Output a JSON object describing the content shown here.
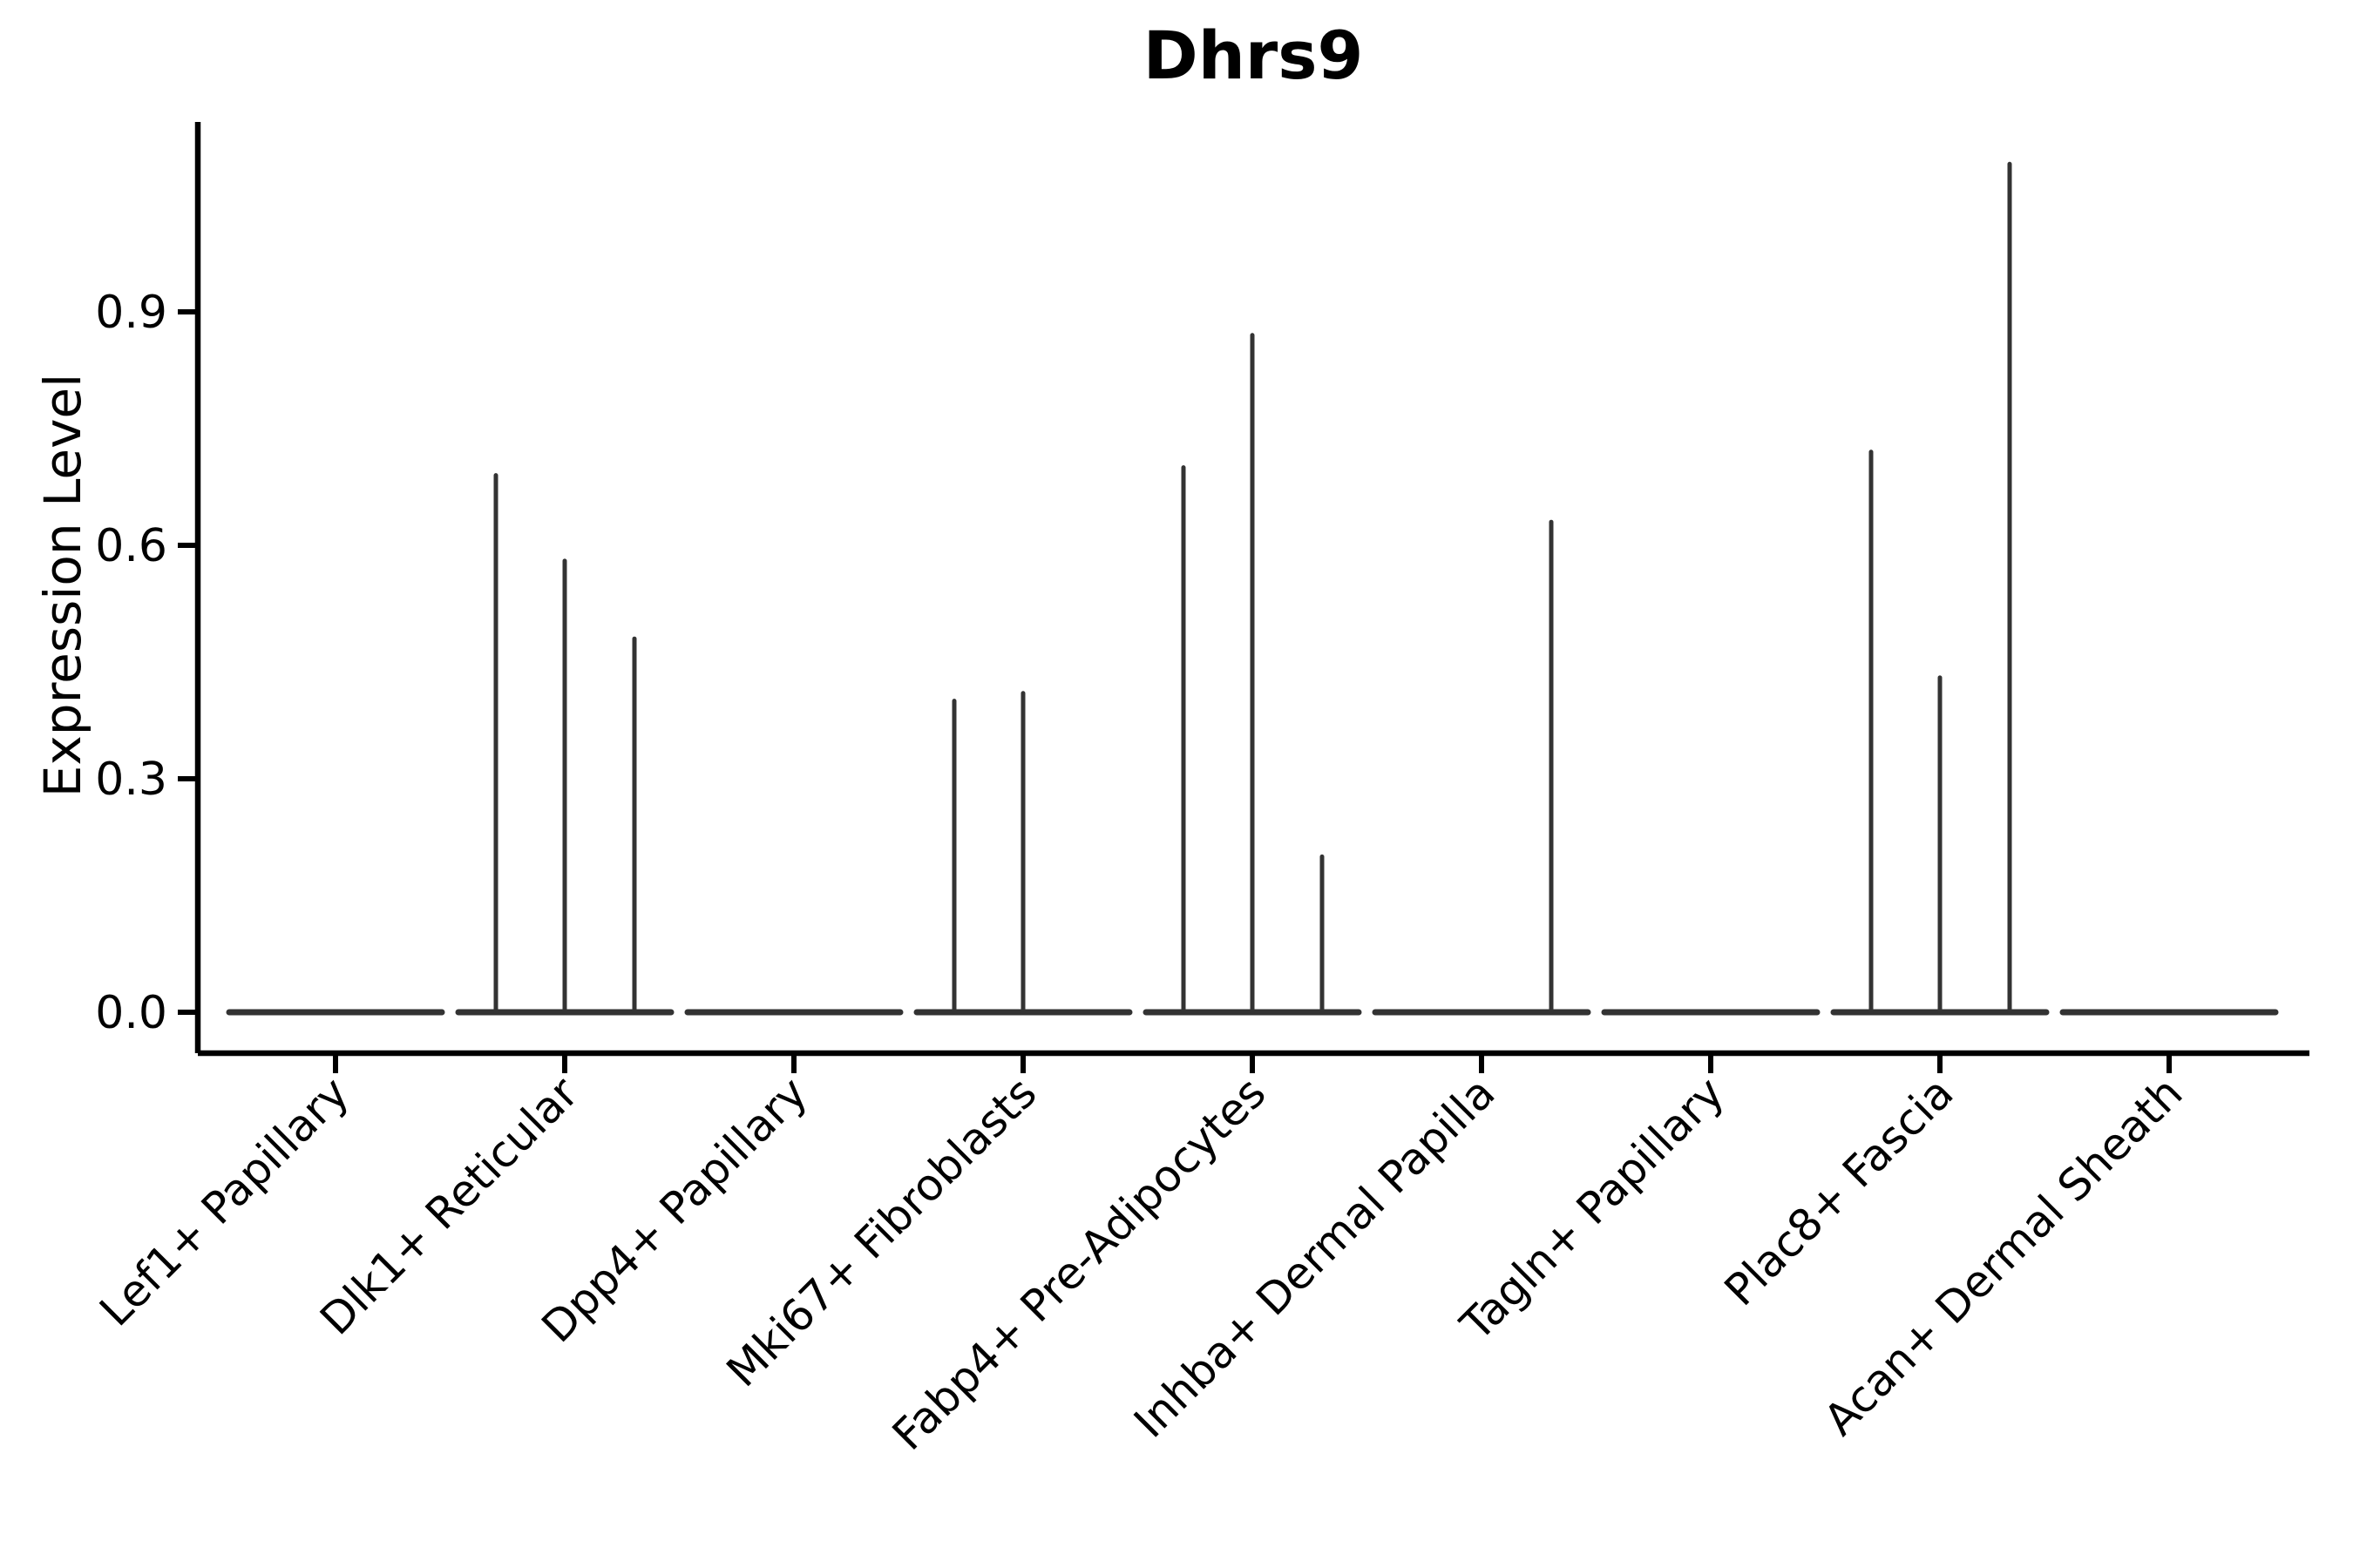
{
  "chart_data": {
    "type": "violin",
    "title": "Dhrs9",
    "ylabel": "Expression Level",
    "xlabel": "",
    "ylim": [
      0,
      1.145
    ],
    "grid": false,
    "legend": null,
    "violin_color": "#333333",
    "axis_color": "#000000",
    "yticks": [
      {
        "value": 0.0,
        "label": "0.0"
      },
      {
        "value": 0.3,
        "label": "0.3"
      },
      {
        "value": 0.6,
        "label": "0.6"
      },
      {
        "value": 0.9,
        "label": "0.9"
      }
    ],
    "categories": [
      {
        "label": "Lef1+ Papillary",
        "spikes": []
      },
      {
        "label": "Dlk1+ Reticular",
        "spikes": [
          {
            "offset": -79,
            "value": 0.69
          },
          {
            "offset": 0,
            "value": 0.58
          },
          {
            "offset": 80,
            "value": 0.48
          }
        ]
      },
      {
        "label": "Dpp4+ Papillary",
        "spikes": []
      },
      {
        "label": "Mki67+ Fibroblasts",
        "spikes": [
          {
            "offset": -79,
            "value": 0.4
          },
          {
            "offset": 0,
            "value": 0.41
          }
        ]
      },
      {
        "label": "Fabp4+ Pre-Adipocytes",
        "spikes": [
          {
            "offset": -79,
            "value": 0.7
          },
          {
            "offset": 0,
            "value": 0.87
          },
          {
            "offset": 80,
            "value": 0.2
          }
        ]
      },
      {
        "label": "Inhba+ Dermal Papilla",
        "spikes": [
          {
            "offset": 80,
            "value": 0.63
          }
        ]
      },
      {
        "label": "Tagln+ Papillary",
        "spikes": []
      },
      {
        "label": "Plac8+ Fascia",
        "spikes": [
          {
            "offset": -79,
            "value": 0.72
          },
          {
            "offset": 0,
            "value": 0.43
          },
          {
            "offset": 80,
            "value": 1.09
          }
        ]
      },
      {
        "label": "Acan+ Dermal Sheath",
        "spikes": []
      }
    ],
    "description": "Violin plot of Dhrs9 expression per cluster; density collapsed to a flat line at 0 with thin spikes for the few expressing cells"
  }
}
